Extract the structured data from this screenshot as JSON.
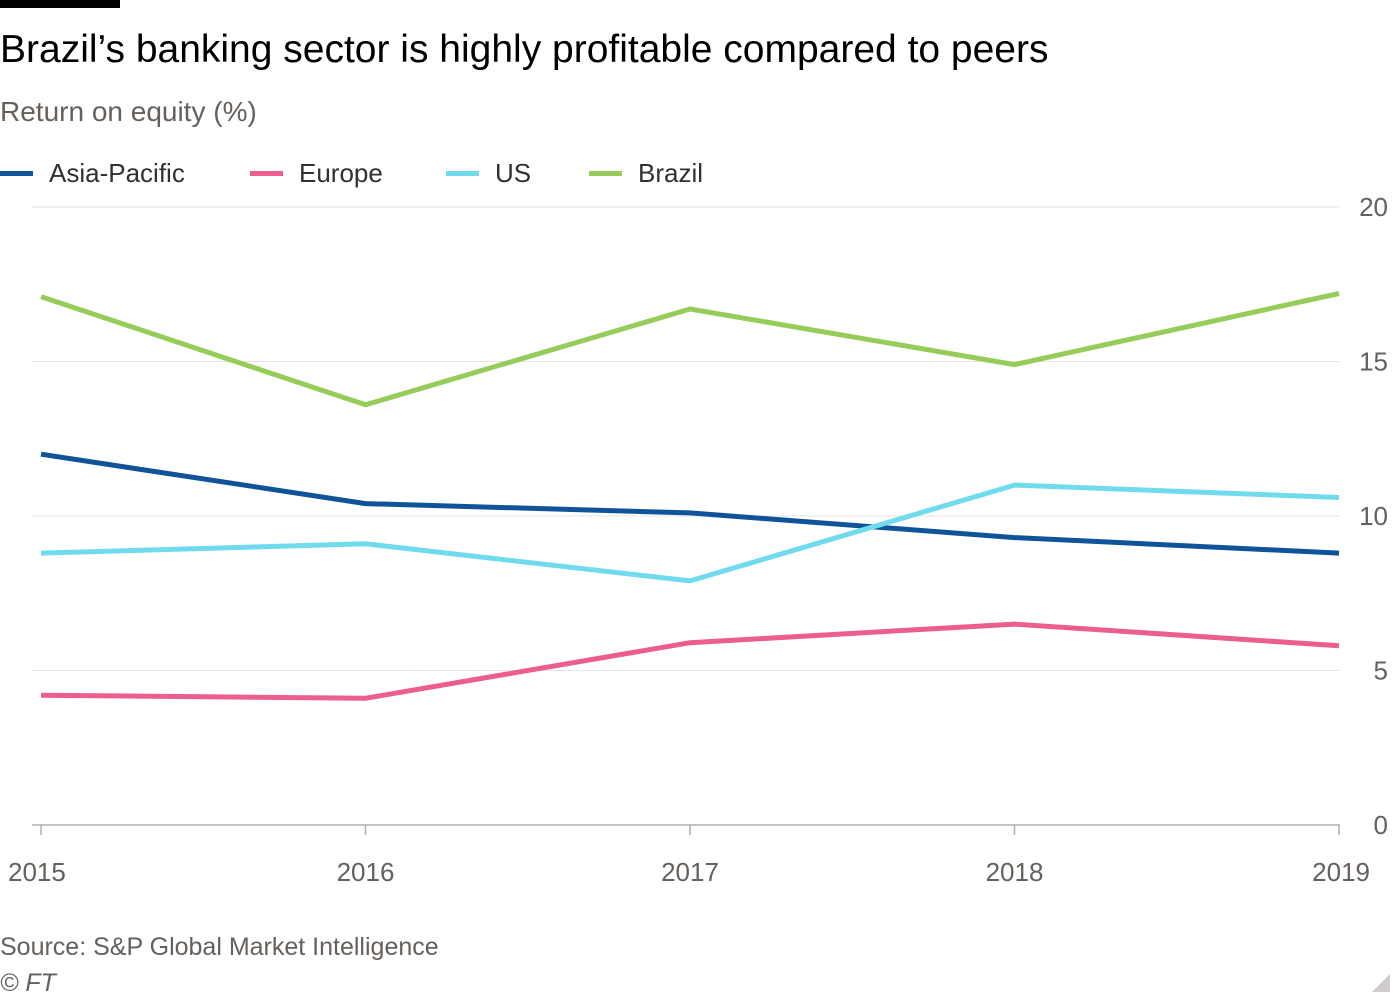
{
  "header": {
    "title": "Brazil’s banking sector is highly profitable compared to peers",
    "subtitle": "Return on equity (%)"
  },
  "legend": {
    "items": [
      {
        "label": "Asia-Pacific",
        "color": "#0f5499"
      },
      {
        "label": "Europe",
        "color": "#eb5e8d"
      },
      {
        "label": "US",
        "color": "#70dbed"
      },
      {
        "label": "Brazil",
        "color": "#96cc5a"
      }
    ]
  },
  "chart_data": {
    "type": "line",
    "title": "Brazil’s banking sector is highly profitable compared to peers",
    "subtitle": "Return on equity (%)",
    "xlabel": "",
    "ylabel": "",
    "x": [
      2015,
      2016,
      2017,
      2018,
      2019
    ],
    "x_tick_labels": [
      "2015",
      "2016",
      "2017",
      "2018",
      "2019"
    ],
    "y_ticks": [
      0,
      5,
      10,
      15,
      20
    ],
    "y_tick_labels": [
      "0",
      "5",
      "10",
      "15",
      "20"
    ],
    "ylim": [
      0,
      20
    ],
    "y_axis_position": "right",
    "grid": "horizontal",
    "legend_position": "top-left",
    "series": [
      {
        "name": "Asia-Pacific",
        "color": "#0f5499",
        "values": [
          12.0,
          10.4,
          10.1,
          9.3,
          8.8
        ]
      },
      {
        "name": "Europe",
        "color": "#eb5e8d",
        "values": [
          4.2,
          4.1,
          5.9,
          6.5,
          5.8
        ]
      },
      {
        "name": "US",
        "color": "#70dbed",
        "values": [
          8.8,
          9.1,
          7.9,
          11.0,
          10.6
        ]
      },
      {
        "name": "Brazil",
        "color": "#96cc5a",
        "values": [
          17.1,
          13.6,
          16.7,
          14.9,
          17.2
        ]
      }
    ]
  },
  "footer": {
    "source": "Source: S&P Global Market Intelligence",
    "copyright": "© FT"
  }
}
